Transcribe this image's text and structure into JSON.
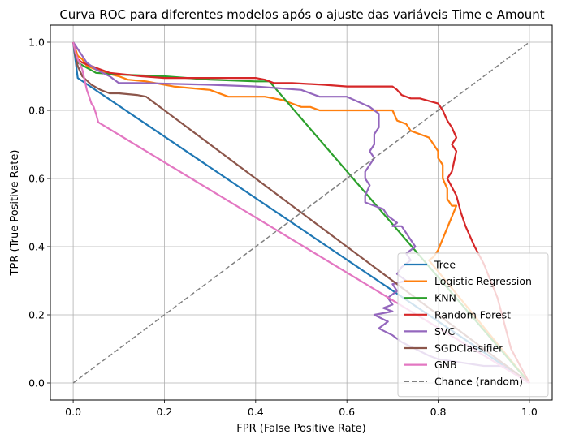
{
  "chart_data": {
    "type": "line",
    "title": "Curva ROC para diferentes modelos após o ajuste das variáveis Time e Amount",
    "xlabel": "FPR (False Positive Rate)",
    "ylabel": "TPR (True Positive Rate)",
    "xlim": [
      -0.05,
      1.05
    ],
    "ylim": [
      -0.05,
      1.05
    ],
    "xticks": [
      "0.0",
      "0.2",
      "0.4",
      "0.6",
      "0.8",
      "1.0"
    ],
    "yticks": [
      "0.0",
      "0.2",
      "0.4",
      "0.6",
      "0.8",
      "1.0"
    ],
    "grid": true,
    "legend_position": "lower right",
    "series": [
      {
        "name": "Tree",
        "color": "#1f77b4",
        "dashed": false,
        "x": [
          0,
          0.01,
          1.0
        ],
        "y": [
          1.0,
          0.895,
          0.0
        ]
      },
      {
        "name": "Logistic Regression",
        "color": "#ff7f0e",
        "dashed": false,
        "x": [
          0,
          0.005,
          0.01,
          0.02,
          0.03,
          0.05,
          0.07,
          0.1,
          0.12,
          0.16,
          0.22,
          0.3,
          0.34,
          0.35,
          0.42,
          0.46,
          0.48,
          0.5,
          0.52,
          0.54,
          0.6,
          0.7,
          0.71,
          0.73,
          0.74,
          0.76,
          0.78,
          0.79,
          0.8,
          0.8,
          0.81,
          0.81,
          0.82,
          0.82,
          0.83,
          0.84,
          0.8,
          0.79,
          0.78,
          1.0
        ],
        "y": [
          1.0,
          0.98,
          0.96,
          0.95,
          0.93,
          0.92,
          0.91,
          0.9,
          0.89,
          0.885,
          0.87,
          0.86,
          0.84,
          0.84,
          0.84,
          0.83,
          0.82,
          0.81,
          0.81,
          0.8,
          0.8,
          0.8,
          0.77,
          0.76,
          0.74,
          0.73,
          0.72,
          0.7,
          0.68,
          0.66,
          0.64,
          0.6,
          0.57,
          0.54,
          0.52,
          0.52,
          0.39,
          0.37,
          0.36,
          0.0
        ]
      },
      {
        "name": "KNN",
        "color": "#2ca02c",
        "dashed": false,
        "x": [
          0,
          0.01,
          0.05,
          0.1,
          0.2,
          0.3,
          0.4,
          0.43,
          1.0
        ],
        "y": [
          1.0,
          0.94,
          0.91,
          0.905,
          0.9,
          0.89,
          0.885,
          0.885,
          0.0
        ]
      },
      {
        "name": "Random Forest",
        "color": "#d62728",
        "dashed": false,
        "x": [
          0,
          0.005,
          0.01,
          0.02,
          0.04,
          0.06,
          0.08,
          0.15,
          0.2,
          0.3,
          0.4,
          0.42,
          0.44,
          0.48,
          0.55,
          0.6,
          0.7,
          0.71,
          0.72,
          0.73,
          0.74,
          0.76,
          0.8,
          0.81,
          0.82,
          0.83,
          0.84,
          0.83,
          0.84,
          0.83,
          0.82,
          0.84,
          0.85,
          0.86,
          0.88,
          0.9,
          0.93,
          0.96,
          1.0
        ],
        "y": [
          1.0,
          0.97,
          0.95,
          0.94,
          0.93,
          0.92,
          0.91,
          0.9,
          0.895,
          0.895,
          0.895,
          0.89,
          0.88,
          0.88,
          0.875,
          0.87,
          0.87,
          0.86,
          0.845,
          0.84,
          0.835,
          0.835,
          0.82,
          0.8,
          0.77,
          0.75,
          0.72,
          0.7,
          0.68,
          0.62,
          0.6,
          0.55,
          0.5,
          0.46,
          0.4,
          0.35,
          0.25,
          0.1,
          0.0
        ]
      },
      {
        "name": "SVC",
        "color": "#9467bd",
        "dashed": false,
        "x": [
          0,
          0.01,
          0.02,
          0.03,
          0.05,
          0.08,
          0.1,
          0.15,
          0.3,
          0.4,
          0.5,
          0.52,
          0.54,
          0.55,
          0.56,
          0.58,
          0.6,
          0.65,
          0.67,
          0.67,
          0.66,
          0.66,
          0.65,
          0.66,
          0.65,
          0.64,
          0.64,
          0.65,
          0.64,
          0.64,
          0.66,
          0.68,
          0.69,
          0.7,
          0.71,
          0.7,
          0.72,
          0.73,
          0.74,
          0.75,
          0.73,
          0.74,
          0.72,
          0.71,
          0.73,
          0.7,
          0.71,
          0.69,
          0.7,
          0.68,
          0.7,
          0.66,
          0.69,
          0.67,
          0.7,
          0.72,
          0.75,
          0.78,
          0.8,
          0.85,
          0.9,
          0.95,
          1.0
        ],
        "y": [
          1.0,
          0.98,
          0.96,
          0.94,
          0.92,
          0.9,
          0.88,
          0.88,
          0.875,
          0.87,
          0.86,
          0.85,
          0.84,
          0.84,
          0.84,
          0.84,
          0.84,
          0.81,
          0.79,
          0.75,
          0.73,
          0.7,
          0.68,
          0.66,
          0.64,
          0.62,
          0.6,
          0.58,
          0.55,
          0.53,
          0.52,
          0.51,
          0.49,
          0.48,
          0.47,
          0.46,
          0.46,
          0.44,
          0.42,
          0.4,
          0.38,
          0.36,
          0.34,
          0.32,
          0.3,
          0.29,
          0.27,
          0.25,
          0.23,
          0.22,
          0.21,
          0.2,
          0.18,
          0.16,
          0.14,
          0.12,
          0.1,
          0.08,
          0.07,
          0.06,
          0.05,
          0.05,
          0.0
        ]
      },
      {
        "name": "SGDClassifier",
        "color": "#8c564b",
        "dashed": false,
        "x": [
          0,
          0.005,
          0.01,
          0.02,
          0.04,
          0.06,
          0.08,
          0.1,
          0.14,
          0.16,
          1.0
        ],
        "y": [
          1.0,
          0.96,
          0.93,
          0.9,
          0.875,
          0.86,
          0.85,
          0.85,
          0.845,
          0.84,
          0.0
        ]
      },
      {
        "name": "GNB",
        "color": "#e377c2",
        "dashed": false,
        "x": [
          0,
          0.005,
          0.01,
          0.02,
          0.025,
          0.03,
          0.035,
          0.04,
          0.045,
          0.05,
          0.055,
          1.0
        ],
        "y": [
          1.0,
          0.97,
          0.95,
          0.92,
          0.89,
          0.86,
          0.84,
          0.82,
          0.81,
          0.79,
          0.765,
          0.0
        ]
      },
      {
        "name": "Chance (random)",
        "color": "#808080",
        "dashed": true,
        "x": [
          0,
          1
        ],
        "y": [
          0,
          1
        ]
      }
    ]
  }
}
